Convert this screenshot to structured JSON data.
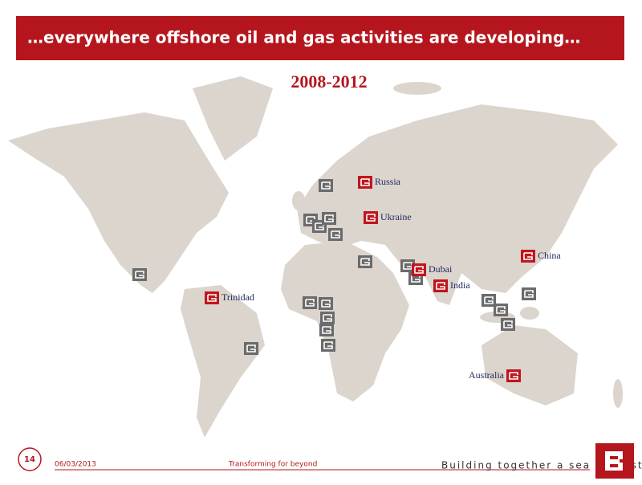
{
  "header": {
    "title": "…everywhere offshore oil and gas activities are developing…",
    "subtitle": "2008-2012"
  },
  "locations": [
    "Russia",
    "Ukraine",
    "Dubai",
    "India",
    "China",
    "Trinidad",
    "Australia"
  ],
  "footer": {
    "page": "14",
    "date": "06/03/2013",
    "tagline": "Transforming for beyond",
    "slogan": "Building together a sea of trust"
  }
}
